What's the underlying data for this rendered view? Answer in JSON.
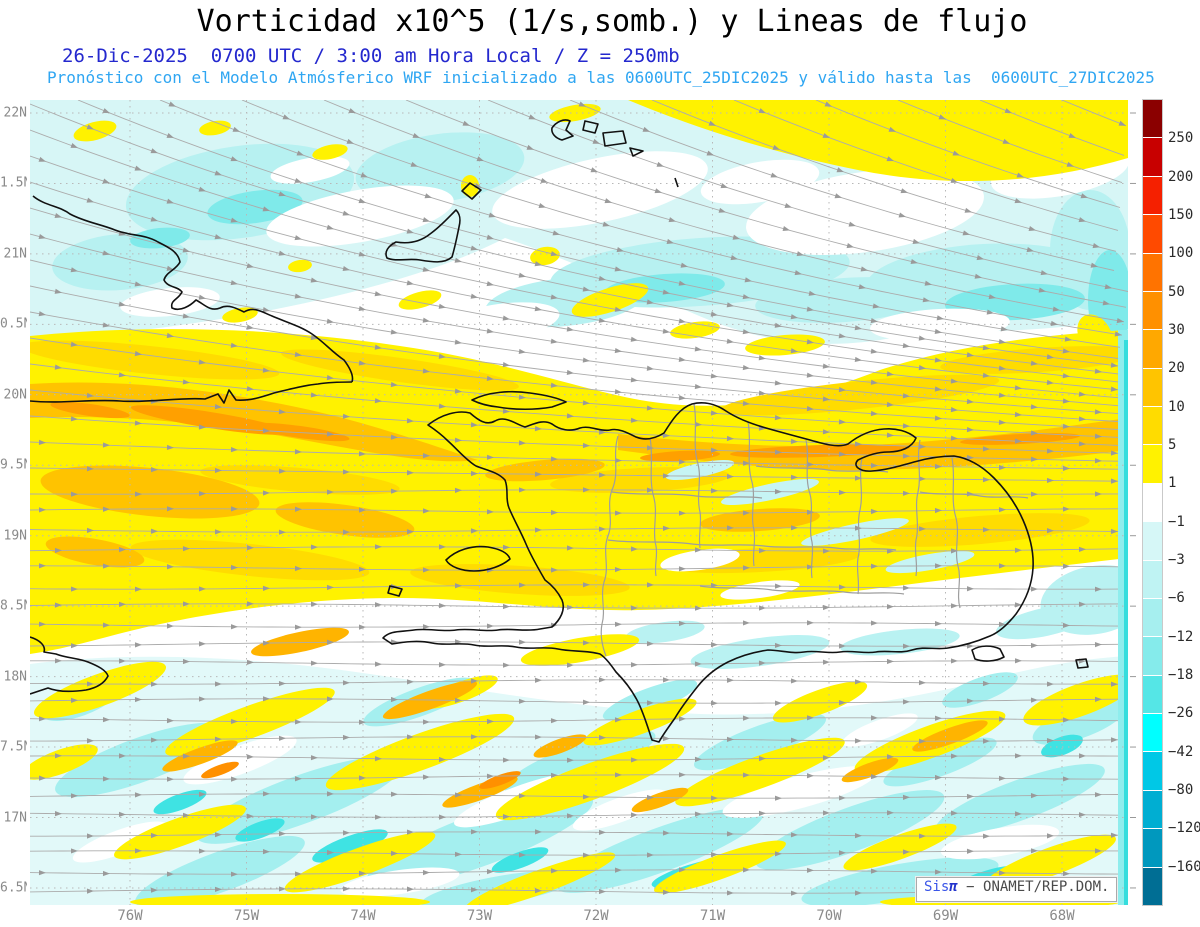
{
  "header": {
    "title": "Vorticidad x10^5 (1/s,somb.) y Lineas de flujo",
    "subtitle_datetime": "26-Dic-2025  0700 UTC / 3:00 am Hora Local / Z = 250mb",
    "subtitle_model": "Pronóstico con el Modelo Atmósferico WRF inicializado a las 0600UTC_25DIC2025 y válido hasta las  0600UTC_27DIC2025",
    "title_color": "#000000",
    "subtitle_datetime_color": "#2428CE",
    "subtitle_model_color": "#2FA6F2"
  },
  "map": {
    "y_axis_labels": [
      "22N",
      "1.5N",
      "21N",
      "0.5N",
      "20N",
      "9.5N",
      "19N",
      "8.5N",
      "18N",
      "7.5N",
      "17N",
      "6.5N"
    ],
    "x_axis_labels": [
      "76W",
      "75W",
      "74W",
      "73W",
      "72W",
      "71W",
      "70W",
      "69W",
      "68W"
    ],
    "axis_label_color": "#8A8A8A"
  },
  "colorbar": {
    "tick_labels": [
      "250",
      "200",
      "150",
      "100",
      "50",
      "30",
      "20",
      "10",
      "5",
      "1",
      "−1",
      "−3",
      "−6",
      "−12",
      "−18",
      "−26",
      "−42",
      "−80",
      "−120",
      "−160"
    ],
    "cell_colors": [
      "#8B0000",
      "#C80000",
      "#F52000",
      "#FF4A00",
      "#FF7300",
      "#FF9000",
      "#FFA800",
      "#FFC400",
      "#FFDC00",
      "#FFF200",
      "#FFFFFF",
      "#D6F7F7",
      "#BFF3F3",
      "#A6EFEF",
      "#85EBEB",
      "#55E6E6",
      "#00FFFF",
      "#00C8E6",
      "#00AED2",
      "#0098BE",
      "#006E94"
    ],
    "label_color": "#2A2A2A"
  },
  "watermark": {
    "prefix": "Sis",
    "pi": "π",
    "suffix": " − ONAMET/REP.DOM.",
    "prefix_color": "#3A55E8",
    "pi_color": "#2233CC",
    "suffix_color": "#4A4A4A"
  },
  "palette": {
    "streamline": "#ACACAC",
    "arrow": "#9A9A9A",
    "grid": "#B8B8B8",
    "coastline": "#111111",
    "province_border": "#9E9E9E"
  }
}
